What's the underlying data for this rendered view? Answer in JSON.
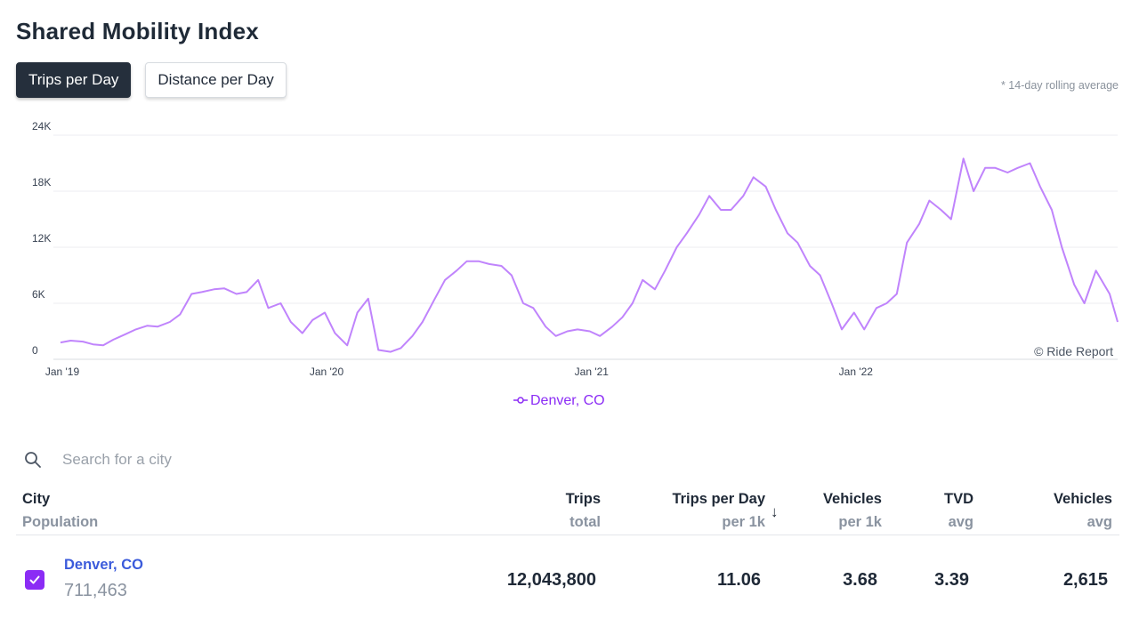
{
  "header": {
    "title": "Shared Mobility Index",
    "rolling_note": "* 14-day rolling average"
  },
  "toggles": [
    {
      "label": "Trips per Day",
      "active": true
    },
    {
      "label": "Distance per Day",
      "active": false
    }
  ],
  "colors": {
    "series": "#c084fc",
    "legend_text": "#8b2cf5",
    "link": "#3b5bdb",
    "checkbox": "#8b2cf5"
  },
  "chart_data": {
    "type": "line",
    "title": "",
    "xlabel": "",
    "ylabel": "",
    "x_range": [
      "2019-01-01",
      "2022-12-31"
    ],
    "ylim": [
      0,
      24000
    ],
    "y_ticks": [
      0,
      6000,
      12000,
      18000,
      24000
    ],
    "y_tick_labels": [
      "0",
      "6K",
      "12K",
      "18K",
      "24K"
    ],
    "x_ticks": [
      "2019-01-01",
      "2020-01-01",
      "2021-01-01",
      "2022-01-01"
    ],
    "x_tick_labels": [
      "Jan '19",
      "Jan '20",
      "Jan '21",
      "Jan '22"
    ],
    "grid": "horizontal",
    "legend_position": "bottom-center",
    "credit": "© Ride Report",
    "series": [
      {
        "name": "Denver, CO",
        "x": [
          "2019-01-01",
          "2019-01-15",
          "2019-02-01",
          "2019-02-15",
          "2019-03-01",
          "2019-03-15",
          "2019-04-01",
          "2019-04-15",
          "2019-05-01",
          "2019-05-15",
          "2019-06-01",
          "2019-06-15",
          "2019-07-01",
          "2019-07-15",
          "2019-08-01",
          "2019-08-15",
          "2019-09-01",
          "2019-09-15",
          "2019-10-01",
          "2019-10-15",
          "2019-11-01",
          "2019-11-15",
          "2019-12-01",
          "2019-12-15",
          "2020-01-01",
          "2020-01-15",
          "2020-02-01",
          "2020-02-15",
          "2020-03-01",
          "2020-03-15",
          "2020-04-01",
          "2020-04-15",
          "2020-05-01",
          "2020-05-15",
          "2020-06-01",
          "2020-06-15",
          "2020-07-01",
          "2020-07-15",
          "2020-08-01",
          "2020-08-15",
          "2020-09-01",
          "2020-09-15",
          "2020-10-01",
          "2020-10-15",
          "2020-11-01",
          "2020-11-15",
          "2020-12-01",
          "2020-12-15",
          "2021-01-01",
          "2021-01-15",
          "2021-02-01",
          "2021-02-15",
          "2021-03-01",
          "2021-03-15",
          "2021-04-01",
          "2021-04-15",
          "2021-05-01",
          "2021-05-15",
          "2021-06-01",
          "2021-06-15",
          "2021-07-01",
          "2021-07-15",
          "2021-08-01",
          "2021-08-15",
          "2021-09-01",
          "2021-09-15",
          "2021-10-01",
          "2021-10-15",
          "2021-11-01",
          "2021-11-15",
          "2021-12-01",
          "2021-12-15",
          "2022-01-01",
          "2022-01-15",
          "2022-02-01",
          "2022-02-15",
          "2022-03-01",
          "2022-03-15",
          "2022-04-01",
          "2022-04-15",
          "2022-05-01",
          "2022-05-15",
          "2022-06-01",
          "2022-06-15",
          "2022-07-01",
          "2022-07-15",
          "2022-08-01",
          "2022-08-15",
          "2022-09-01",
          "2022-09-15",
          "2022-10-01",
          "2022-10-15",
          "2022-11-01",
          "2022-11-15",
          "2022-12-01",
          "2022-12-20",
          "2022-12-31"
        ],
        "y": [
          1800,
          2000,
          1900,
          1600,
          1500,
          2100,
          2700,
          3200,
          3600,
          3500,
          4000,
          4800,
          7000,
          7200,
          7500,
          7600,
          7000,
          7200,
          8500,
          5500,
          6000,
          4000,
          2800,
          4200,
          5000,
          2800,
          1500,
          5000,
          6500,
          1000,
          800,
          1200,
          2500,
          4000,
          6500,
          8500,
          9500,
          10500,
          10500,
          10200,
          10000,
          9000,
          6000,
          5500,
          3500,
          2500,
          3000,
          3200,
          3000,
          2500,
          3500,
          4500,
          6000,
          8500,
          7500,
          9500,
          12000,
          13500,
          15500,
          17500,
          16000,
          16000,
          17500,
          19500,
          18500,
          16000,
          13500,
          12500,
          10000,
          9000,
          6000,
          3200,
          5000,
          3200,
          5500,
          6000,
          7000,
          12500,
          14500,
          17000,
          16000,
          15000,
          21500,
          18000,
          20500,
          20500,
          20000,
          20500,
          21000,
          18500,
          16000,
          12000,
          8000,
          6000,
          9500,
          7000,
          4000
        ]
      }
    ]
  },
  "search": {
    "placeholder": "Search for a city",
    "value": ""
  },
  "table": {
    "headers": {
      "city": {
        "main": "City",
        "sub": "Population"
      },
      "trips": {
        "main": "Trips",
        "sub": "total"
      },
      "trips_per_day": {
        "main": "Trips per Day",
        "sub": "per 1k"
      },
      "vehicles_per_1k": {
        "main": "Vehicles",
        "sub": "per 1k"
      },
      "tvd": {
        "main": "TVD",
        "sub": "avg"
      },
      "vehicles_avg": {
        "main": "Vehicles",
        "sub": "avg"
      }
    },
    "sort_indicator": "↓",
    "rows": [
      {
        "city": "Denver, CO",
        "population": "711,463",
        "trips": "12,043,800",
        "trips_per_day": "11.06",
        "vehicles_per_1k": "3.68",
        "tvd": "3.39",
        "vehicles_avg": "2,615",
        "checked": true
      }
    ]
  }
}
